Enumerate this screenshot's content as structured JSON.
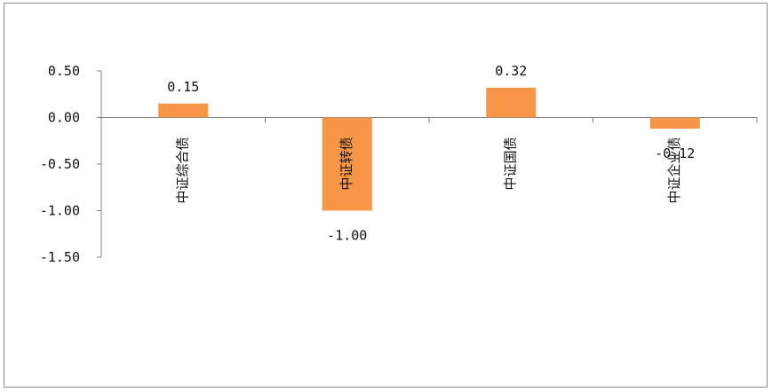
{
  "chart_data": {
    "type": "bar",
    "categories": [
      "中证综合债",
      "中证转债",
      "中证国债",
      "中证企业债"
    ],
    "values": [
      0.15,
      -1.0,
      0.32,
      -0.12
    ],
    "value_labels": [
      "0.15",
      "-1.00",
      "0.32",
      "-0.12"
    ],
    "ylim": [
      -1.5,
      0.5
    ],
    "yticks": [
      0.5,
      0.0,
      -0.5,
      -1.0,
      -1.5
    ],
    "ytick_labels": [
      "0.50",
      "0.00",
      "-0.50",
      "-1.00",
      "-1.50"
    ],
    "bar_color": "#f79646",
    "grid": false,
    "legend": "none"
  }
}
